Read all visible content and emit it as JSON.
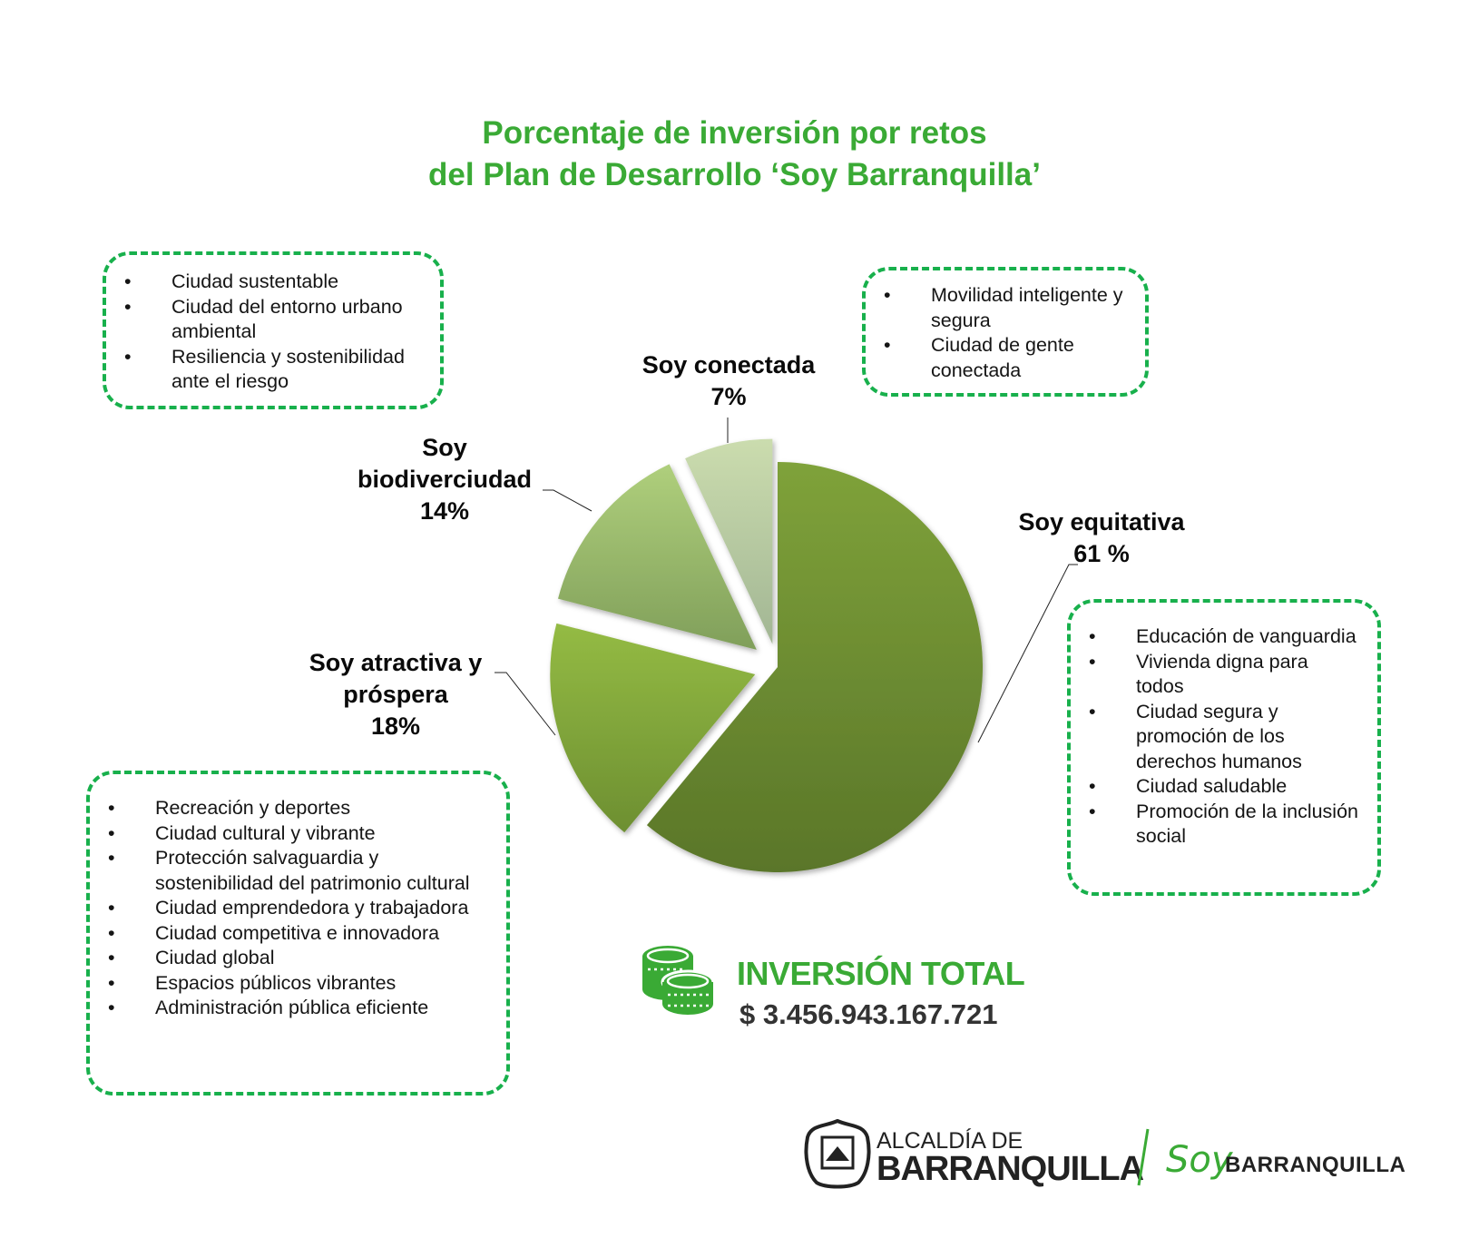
{
  "chart_data": {
    "type": "pie",
    "title": [
      "Porcentaje de inversión por retos",
      "del Plan de Desarrollo ‘Soy Barranquilla’"
    ],
    "exploded": true,
    "slices": [
      {
        "name": "Soy equitativa",
        "value": 61,
        "label": "61 %",
        "color": "#6f8f31",
        "items": [
          "Educación de vanguardia",
          "Vivienda digna para todos",
          "Ciudad segura y promoción de los derechos humanos",
          "Ciudad saludable",
          "Promoción de la inclusión social"
        ]
      },
      {
        "name": "Soy atractiva y próspera",
        "value": 18,
        "label": "18%",
        "color": "#8db340",
        "items": [
          "Recreación y deportes",
          "Ciudad cultural y vibrante",
          "Protección salvaguardia y sostenibilidad del patrimonio cultural",
          "Ciudad emprendedora y trabajadora",
          "Ciudad competitiva e innovadora",
          "Ciudad global",
          "Espacios públicos vibrantes",
          "Administración pública eficiente"
        ]
      },
      {
        "name": "Soy biodiverciudad",
        "value": 14,
        "label": "14%",
        "color": "#a3c474",
        "items": [
          "Ciudad sustentable",
          "Ciudad del entorno urbano ambiental",
          "Resiliencia y sostenibilidad ante el riesgo"
        ]
      },
      {
        "name": "Soy conectada",
        "value": 7,
        "label": "7%",
        "color": "#c3d6a8",
        "items": [
          "Movilidad inteligente y segura",
          "Ciudad de gente conectada"
        ]
      }
    ]
  },
  "labels": {
    "equitativa": [
      "Soy equitativa",
      "61 %"
    ],
    "atractiva": [
      "Soy atractiva y",
      "próspera",
      "18%"
    ],
    "biodiverciudad": [
      "Soy",
      "biodiverciudad",
      "14%"
    ],
    "conectada": [
      "Soy conectada",
      "7%"
    ]
  },
  "investment": {
    "title": "INVERSIÓN TOTAL",
    "amount": "$ 3.456.943.167.721",
    "icon": "coins-icon"
  },
  "footer": {
    "logo_line1": "ALCALDÍA DE",
    "logo_line2": "BARRANQUILLA",
    "brand_soy": "Soy",
    "brand_name": "BARRANQUILLA",
    "emblem": "coat-of-arms-icon"
  },
  "colors": {
    "accent": "#3aaa35",
    "dash": "#18b04c"
  }
}
